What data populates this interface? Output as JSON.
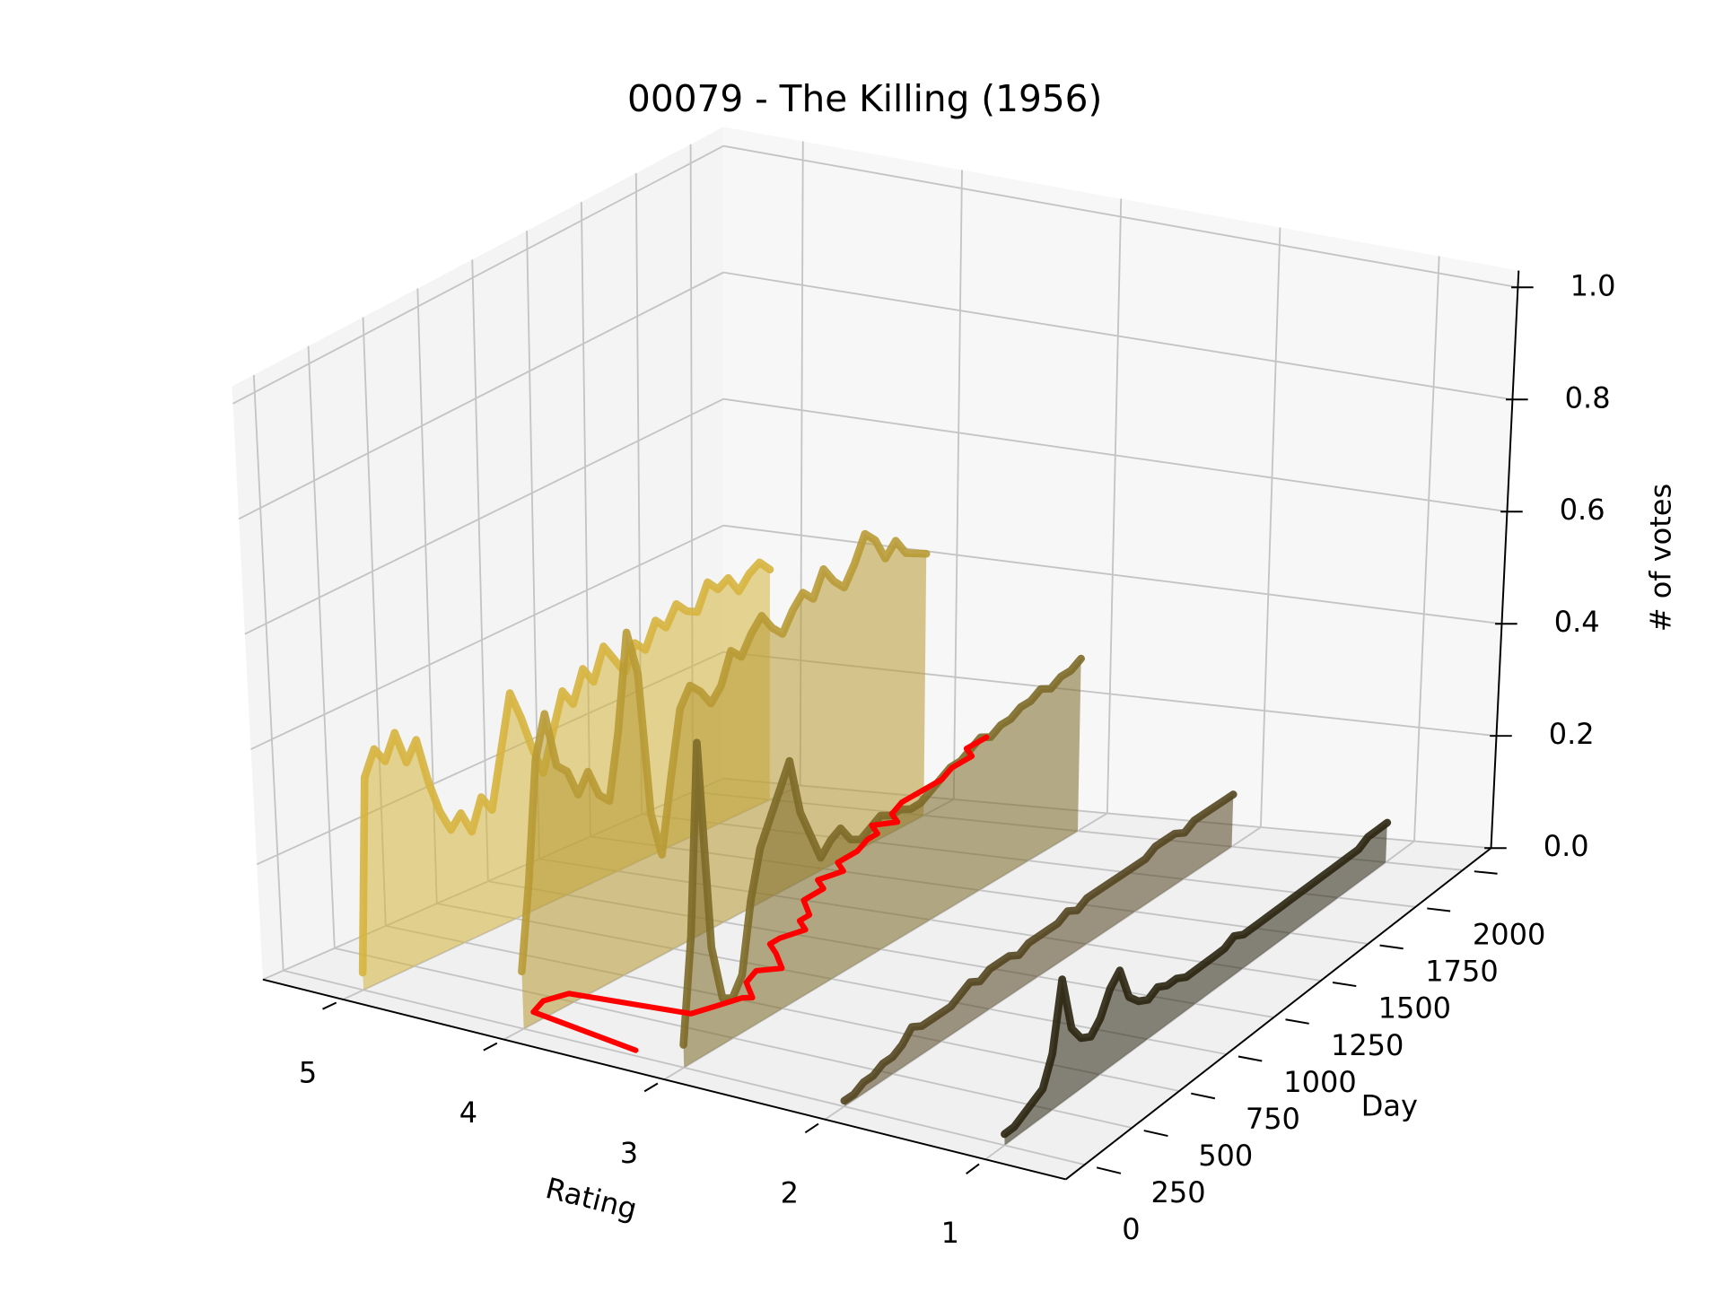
{
  "chart_data": {
    "type": "line3d",
    "title": "00079 - The Killing (1956)",
    "xlabel": "Rating",
    "ylabel": "Day",
    "zlabel": "# of votes",
    "xlim": [
      0.5,
      5.5
    ],
    "ylim": [
      -100,
      2150
    ],
    "zlim": [
      0,
      1.03
    ],
    "xticks": [
      1,
      2,
      3,
      4,
      5
    ],
    "yticks": [
      0,
      250,
      500,
      750,
      1000,
      1250,
      1500,
      1750,
      2000
    ],
    "zticks": [
      {
        "value": 0,
        "label": "0.0"
      },
      0.2,
      0.4,
      0.6,
      0.8,
      {
        "value": 1,
        "label": "1.0"
      }
    ],
    "grid": true,
    "x": [
      0,
      50,
      100,
      150,
      200,
      250,
      300,
      350,
      400,
      450,
      500,
      550,
      600,
      650,
      700,
      750,
      800,
      850,
      900,
      950,
      1000,
      1050,
      1100,
      1150,
      1200,
      1250,
      1300,
      1350,
      1400,
      1450,
      1500,
      1550,
      1600,
      1650,
      1700,
      1750,
      1800,
      1850,
      1900,
      1950,
      2000
    ],
    "series": [
      {
        "rating": 5,
        "color": "#d6b43e",
        "fill": true,
        "values": [
          0.03,
          0.36,
          0.4,
          0.37,
          0.41,
          0.35,
          0.38,
          0.3,
          0.24,
          0.2,
          0.22,
          0.18,
          0.23,
          0.2,
          0.29,
          0.38,
          0.33,
          0.27,
          0.22,
          0.28,
          0.34,
          0.31,
          0.36,
          0.33,
          0.38,
          0.35,
          0.32,
          0.36,
          0.34,
          0.38,
          0.36,
          0.39,
          0.37,
          0.36,
          0.4,
          0.38,
          0.39,
          0.36,
          0.38,
          0.39,
          0.37
        ]
      },
      {
        "rating": 4,
        "color": "#b89a35",
        "fill": true,
        "values": [
          0.1,
          0.25,
          0.45,
          0.52,
          0.42,
          0.4,
          0.35,
          0.38,
          0.33,
          0.31,
          0.42,
          0.58,
          0.5,
          0.25,
          0.17,
          0.29,
          0.4,
          0.43,
          0.41,
          0.38,
          0.4,
          0.45,
          0.43,
          0.46,
          0.48,
          0.45,
          0.43,
          0.46,
          0.48,
          0.46,
          0.5,
          0.47,
          0.45,
          0.48,
          0.52,
          0.5,
          0.46,
          0.48,
          0.45,
          0.44,
          0.43
        ]
      },
      {
        "rating": 3,
        "color": "#7d6a28",
        "fill": true,
        "values": [
          0.04,
          0.22,
          0.55,
          0.18,
          0.08,
          0.07,
          0.1,
          0.22,
          0.3,
          0.34,
          0.38,
          0.42,
          0.32,
          0.27,
          0.22,
          0.24,
          0.25,
          0.22,
          0.21,
          0.22,
          0.23,
          0.22,
          0.22,
          0.21,
          0.21,
          0.22,
          0.23,
          0.24,
          0.24,
          0.25,
          0.26,
          0.25,
          0.26,
          0.26,
          0.27,
          0.27,
          0.28,
          0.27,
          0.28,
          0.28,
          0.29
        ]
      },
      {
        "ratings": [
          3.3,
          4.0,
          4.0,
          3.9,
          3.2,
          3.1,
          3.0,
          3.0,
          3.1,
          3.1,
          3.0,
          3.1,
          3.2,
          3.2,
          3.1,
          3.2,
          3.2,
          3.3,
          3.3,
          3.3,
          3.4,
          3.3,
          3.4,
          3.4,
          3.4,
          3.4,
          3.4,
          3.5,
          3.4,
          3.5,
          3.5,
          3.5,
          3.5,
          3.5,
          3.5,
          3.5,
          3.5,
          3.5,
          3.6,
          3.6,
          3.6
        ],
        "color": "#ff0000",
        "fill": false,
        "values": [
          0.01,
          0.02,
          0.03,
          0.04,
          0.04,
          0.05,
          0.06,
          0.05,
          0.06,
          0.07,
          0.07,
          0.08,
          0.08,
          0.08,
          0.09,
          0.09,
          0.09,
          0.1,
          0.1,
          0.1,
          0.1,
          0.11,
          0.11,
          0.11,
          0.11,
          0.12,
          0.12,
          0.12,
          0.12,
          0.12,
          0.13,
          0.13,
          0.13,
          0.13,
          0.13,
          0.14,
          0.14,
          0.14,
          0.14,
          0.14,
          0.14
        ]
      },
      {
        "rating": 2,
        "color": "#544620",
        "fill": true,
        "values": [
          0.01,
          0.01,
          0.02,
          0.02,
          0.03,
          0.03,
          0.04,
          0.06,
          0.05,
          0.05,
          0.05,
          0.05,
          0.06,
          0.07,
          0.06,
          0.07,
          0.07,
          0.07,
          0.06,
          0.07,
          0.07,
          0.07,
          0.07,
          0.08,
          0.07,
          0.08,
          0.08,
          0.08,
          0.08,
          0.08,
          0.08,
          0.08,
          0.09,
          0.09,
          0.09,
          0.08,
          0.09,
          0.09,
          0.09,
          0.09,
          0.09
        ]
      },
      {
        "rating": 1,
        "color": "#2a2410",
        "fill": true,
        "values": [
          0.02,
          0.02,
          0.03,
          0.04,
          0.05,
          0.1,
          0.22,
          0.12,
          0.09,
          0.08,
          0.1,
          0.14,
          0.16,
          0.1,
          0.08,
          0.07,
          0.08,
          0.07,
          0.07,
          0.06,
          0.06,
          0.06,
          0.06,
          0.06,
          0.07,
          0.06,
          0.06,
          0.06,
          0.06,
          0.06,
          0.06,
          0.06,
          0.06,
          0.06,
          0.06,
          0.06,
          0.06,
          0.06,
          0.07,
          0.07,
          0.07
        ]
      }
    ]
  }
}
